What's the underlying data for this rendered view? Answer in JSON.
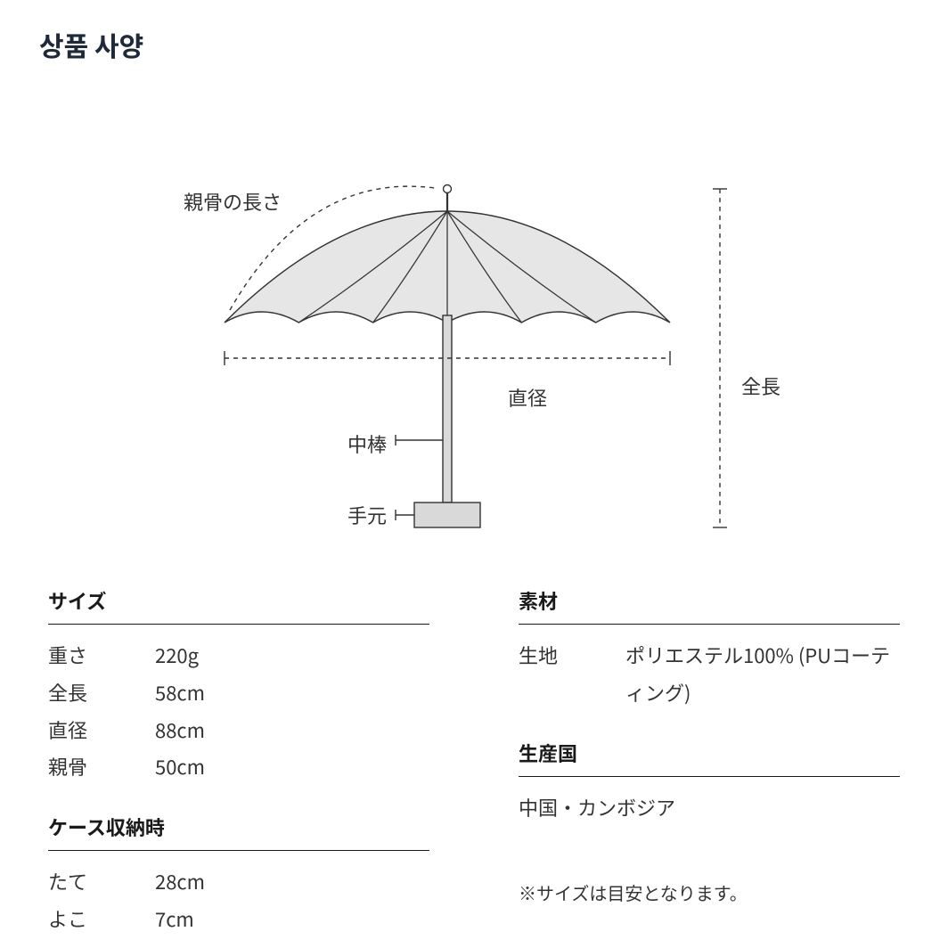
{
  "title": "상품 사양",
  "diagram": {
    "type": "infographic",
    "labels": {
      "rib_length": "親骨の長さ",
      "diameter": "直径",
      "total_length": "全長",
      "shaft": "中棒",
      "handle": "手元"
    },
    "colors": {
      "canopy_fill": "#e6e6e6",
      "canopy_stroke": "#333333",
      "shaft_fill": "#d9d9d9",
      "shaft_stroke": "#333333",
      "handle_fill": "#d9d9d9",
      "handle_stroke": "#333333",
      "dash_stroke": "#333333",
      "text_color": "#333333",
      "background": "#ffffff"
    },
    "stroke_width": 1.4,
    "dash_pattern": "5,5",
    "label_fontsize": 22
  },
  "specs": {
    "size": {
      "heading": "サイズ",
      "rows": [
        {
          "label": "重さ",
          "value": "220g"
        },
        {
          "label": "全長",
          "value": "58cm"
        },
        {
          "label": "直径",
          "value": "88cm"
        },
        {
          "label": "親骨",
          "value": "50cm"
        }
      ]
    },
    "case": {
      "heading": "ケース収納時",
      "rows": [
        {
          "label": "たて",
          "value": "28cm"
        },
        {
          "label": "よこ",
          "value": "7cm"
        }
      ]
    },
    "material": {
      "heading": "素材",
      "rows": [
        {
          "label": "生地",
          "value": "ポリエステル100% (PUコーティング)"
        }
      ]
    },
    "origin": {
      "heading": "生産国",
      "rows": [
        {
          "label": "",
          "value": "中国・カンボジア"
        }
      ]
    }
  },
  "footnote": "※サイズは目安となります。"
}
